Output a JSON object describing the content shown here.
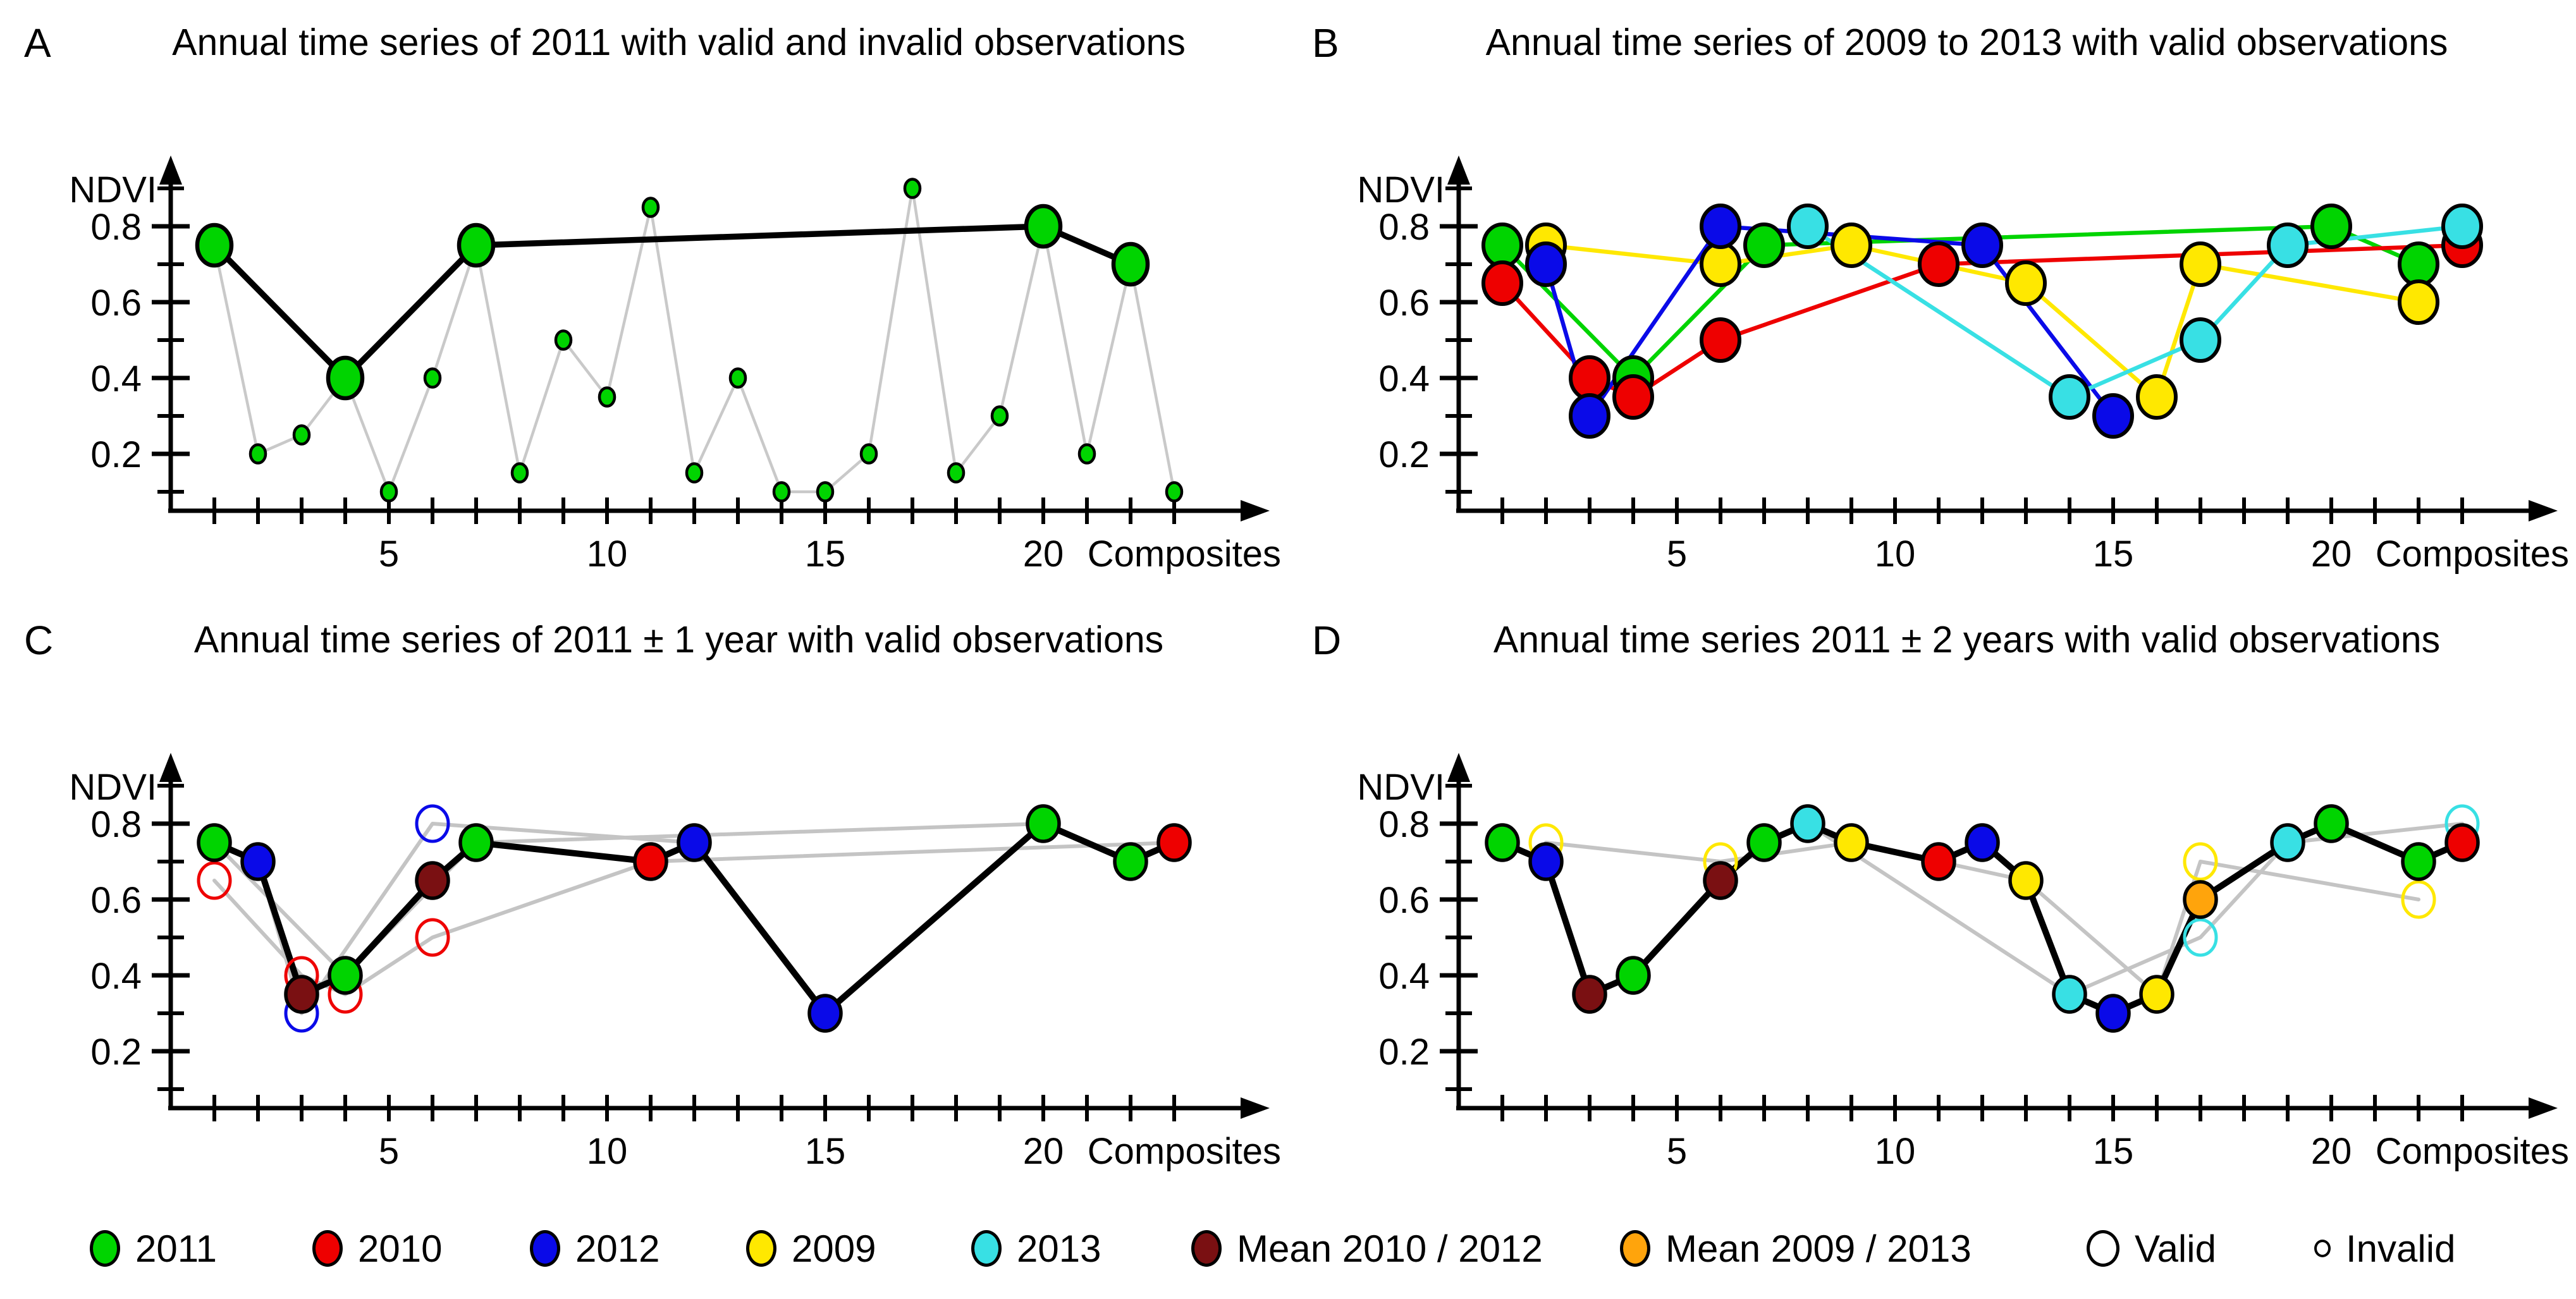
{
  "figure_title": "",
  "colors": {
    "y2011": "#00d400",
    "y2010": "#ee0000",
    "y2012": "#0a0ae8",
    "y2009": "#ffe800",
    "y2013": "#38e0e4",
    "mean_2010_2012": "#7a1012",
    "mean_2009_2013": "#ffa40c",
    "gray_line_a": "#c9c9c9",
    "gray_line_cd": "#c4c4c4",
    "black": "#000000"
  },
  "axis": {
    "ylabel": "NDVI",
    "xlabel": "Composites",
    "y_ticks_minor": [
      0.1,
      0.2,
      0.3,
      0.4,
      0.5,
      0.6,
      0.7,
      0.8,
      0.9
    ],
    "y_ticks_labeled": [
      0.2,
      0.4,
      0.6,
      0.8
    ],
    "x_tick_count": 23,
    "x_ticks_labeled": [
      5,
      10,
      15,
      20
    ],
    "xlim": [
      0,
      24.5
    ],
    "ylim": [
      0,
      0.95
    ],
    "grid": "off"
  },
  "chart_data": [
    {
      "type": "line",
      "panel_letter": "A",
      "title": "Annual time series of 2011 with valid and invalid observations",
      "xlabel": "Composites",
      "ylabel": "NDVI",
      "legend_position": "none",
      "point_style": "large filled = valid, small filled = invalid; black line connects valid, gray line connects all",
      "series_year": "2011",
      "points": [
        {
          "c": 1,
          "v": 0.75,
          "valid": true
        },
        {
          "c": 2,
          "v": 0.2,
          "valid": false
        },
        {
          "c": 3,
          "v": 0.25,
          "valid": false
        },
        {
          "c": 4,
          "v": 0.4,
          "valid": true
        },
        {
          "c": 5,
          "v": 0.1,
          "valid": false
        },
        {
          "c": 6,
          "v": 0.4,
          "valid": false
        },
        {
          "c": 7,
          "v": 0.75,
          "valid": true
        },
        {
          "c": 8,
          "v": 0.15,
          "valid": false
        },
        {
          "c": 9,
          "v": 0.5,
          "valid": false
        },
        {
          "c": 10,
          "v": 0.35,
          "valid": false
        },
        {
          "c": 11,
          "v": 0.85,
          "valid": false
        },
        {
          "c": 12,
          "v": 0.15,
          "valid": false
        },
        {
          "c": 13,
          "v": 0.4,
          "valid": false
        },
        {
          "c": 14,
          "v": 0.1,
          "valid": false
        },
        {
          "c": 15,
          "v": 0.1,
          "valid": false
        },
        {
          "c": 16,
          "v": 0.2,
          "valid": false
        },
        {
          "c": 17,
          "v": 0.9,
          "valid": false
        },
        {
          "c": 18,
          "v": 0.15,
          "valid": false
        },
        {
          "c": 19,
          "v": 0.3,
          "valid": false
        },
        {
          "c": 20,
          "v": 0.8,
          "valid": true
        },
        {
          "c": 21,
          "v": 0.2,
          "valid": false
        },
        {
          "c": 22,
          "v": 0.7,
          "valid": true
        },
        {
          "c": 23,
          "v": 0.1,
          "valid": false
        }
      ]
    },
    {
      "type": "line",
      "panel_letter": "B",
      "title": "Annual time series of 2009 to 2013 with valid observations",
      "xlabel": "Composites",
      "ylabel": "NDVI",
      "legend_position": "bottom-shared",
      "series": [
        {
          "name": "2011",
          "color_key": "y2011",
          "points": [
            [
              1,
              0.75
            ],
            [
              4,
              0.4
            ],
            [
              7,
              0.75
            ],
            [
              20,
              0.8
            ],
            [
              22,
              0.7
            ]
          ]
        },
        {
          "name": "2009",
          "color_key": "y2009",
          "points": [
            [
              2,
              0.75
            ],
            [
              6,
              0.7
            ],
            [
              9,
              0.75
            ],
            [
              13,
              0.65
            ],
            [
              16,
              0.35
            ],
            [
              17,
              0.7
            ],
            [
              22,
              0.6
            ]
          ]
        },
        {
          "name": "2010",
          "color_key": "y2010",
          "points": [
            [
              1,
              0.65
            ],
            [
              3,
              0.4
            ],
            [
              4,
              0.35
            ],
            [
              6,
              0.5
            ],
            [
              11,
              0.7
            ],
            [
              23,
              0.75
            ]
          ]
        },
        {
          "name": "2012",
          "color_key": "y2012",
          "points": [
            [
              2,
              0.7
            ],
            [
              3,
              0.3
            ],
            [
              6,
              0.8
            ],
            [
              12,
              0.75
            ],
            [
              15,
              0.3
            ]
          ]
        },
        {
          "name": "2013",
          "color_key": "y2013",
          "points": [
            [
              8,
              0.8
            ],
            [
              14,
              0.35
            ],
            [
              17,
              0.5
            ],
            [
              19,
              0.75
            ],
            [
              23,
              0.8
            ]
          ]
        }
      ]
    },
    {
      "type": "line",
      "panel_letter": "C",
      "title": "Annual time series of 2011 ± 1 year with valid observations",
      "xlabel": "Composites",
      "ylabel": "NDVI",
      "legend_position": "bottom-shared",
      "point_style": "filled = used in merged series (black line), open = valid observation not used; gray lines connect single-year series",
      "gray_series": [
        {
          "name": "2010",
          "points": [
            [
              1,
              0.65
            ],
            [
              3,
              0.4
            ],
            [
              4,
              0.35
            ],
            [
              6,
              0.5
            ],
            [
              11,
              0.7
            ],
            [
              23,
              0.75
            ]
          ]
        },
        {
          "name": "2012",
          "points": [
            [
              2,
              0.7
            ],
            [
              3,
              0.3
            ],
            [
              6,
              0.8
            ],
            [
              12,
              0.75
            ],
            [
              15,
              0.3
            ]
          ]
        },
        {
          "name": "2011",
          "points": [
            [
              1,
              0.75
            ],
            [
              4,
              0.4
            ],
            [
              7,
              0.75
            ],
            [
              20,
              0.8
            ],
            [
              22,
              0.7
            ]
          ]
        }
      ],
      "merged_points": [
        {
          "c": 1,
          "v": 0.75,
          "color_key": "y2011"
        },
        {
          "c": 2,
          "v": 0.7,
          "color_key": "y2012"
        },
        {
          "c": 3,
          "v": 0.35,
          "color_key": "mean_2010_2012"
        },
        {
          "c": 4,
          "v": 0.4,
          "color_key": "y2011"
        },
        {
          "c": 6,
          "v": 0.65,
          "color_key": "mean_2010_2012"
        },
        {
          "c": 7,
          "v": 0.75,
          "color_key": "y2011"
        },
        {
          "c": 11,
          "v": 0.7,
          "color_key": "y2010"
        },
        {
          "c": 12,
          "v": 0.75,
          "color_key": "y2012"
        },
        {
          "c": 15,
          "v": 0.3,
          "color_key": "y2012"
        },
        {
          "c": 20,
          "v": 0.8,
          "color_key": "y2011"
        },
        {
          "c": 22,
          "v": 0.7,
          "color_key": "y2011"
        },
        {
          "c": 23,
          "v": 0.75,
          "color_key": "y2010"
        }
      ],
      "open_points": [
        {
          "c": 1,
          "v": 0.65,
          "color_key": "y2010"
        },
        {
          "c": 3,
          "v": 0.4,
          "color_key": "y2010"
        },
        {
          "c": 3,
          "v": 0.3,
          "color_key": "y2012"
        },
        {
          "c": 4,
          "v": 0.35,
          "color_key": "y2010"
        },
        {
          "c": 6,
          "v": 0.8,
          "color_key": "y2012"
        },
        {
          "c": 6,
          "v": 0.5,
          "color_key": "y2010"
        }
      ]
    },
    {
      "type": "line",
      "panel_letter": "D",
      "title": "Annual time series 2011 ± 2 years with valid observations",
      "xlabel": "Composites",
      "ylabel": "NDVI",
      "legend_position": "bottom-shared",
      "point_style": "filled = used in merged series (black line), open = valid observation not used; gray lines connect 2009 and 2013 series",
      "gray_series": [
        {
          "name": "2009",
          "points": [
            [
              2,
              0.75
            ],
            [
              6,
              0.7
            ],
            [
              9,
              0.75
            ],
            [
              13,
              0.65
            ],
            [
              16,
              0.35
            ],
            [
              17,
              0.7
            ],
            [
              22,
              0.6
            ]
          ]
        },
        {
          "name": "2013",
          "points": [
            [
              8,
              0.8
            ],
            [
              14,
              0.35
            ],
            [
              17,
              0.5
            ],
            [
              19,
              0.75
            ],
            [
              23,
              0.8
            ]
          ]
        }
      ],
      "merged_points": [
        {
          "c": 1,
          "v": 0.75,
          "color_key": "y2011"
        },
        {
          "c": 2,
          "v": 0.7,
          "color_key": "y2012"
        },
        {
          "c": 3,
          "v": 0.35,
          "color_key": "mean_2010_2012"
        },
        {
          "c": 4,
          "v": 0.4,
          "color_key": "y2011"
        },
        {
          "c": 6,
          "v": 0.65,
          "color_key": "mean_2010_2012"
        },
        {
          "c": 7,
          "v": 0.75,
          "color_key": "y2011"
        },
        {
          "c": 8,
          "v": 0.8,
          "color_key": "y2013"
        },
        {
          "c": 9,
          "v": 0.75,
          "color_key": "y2009"
        },
        {
          "c": 11,
          "v": 0.7,
          "color_key": "y2010"
        },
        {
          "c": 12,
          "v": 0.75,
          "color_key": "y2012"
        },
        {
          "c": 13,
          "v": 0.65,
          "color_key": "y2009"
        },
        {
          "c": 14,
          "v": 0.35,
          "color_key": "y2013"
        },
        {
          "c": 15,
          "v": 0.3,
          "color_key": "y2012"
        },
        {
          "c": 16,
          "v": 0.35,
          "color_key": "y2009"
        },
        {
          "c": 17,
          "v": 0.6,
          "color_key": "mean_2009_2013"
        },
        {
          "c": 19,
          "v": 0.75,
          "color_key": "y2013"
        },
        {
          "c": 20,
          "v": 0.8,
          "color_key": "y2011"
        },
        {
          "c": 22,
          "v": 0.7,
          "color_key": "y2011"
        },
        {
          "c": 23,
          "v": 0.75,
          "color_key": "y2010"
        }
      ],
      "open_points": [
        {
          "c": 2,
          "v": 0.75,
          "color_key": "y2009"
        },
        {
          "c": 6,
          "v": 0.7,
          "color_key": "y2009"
        },
        {
          "c": 17,
          "v": 0.7,
          "color_key": "y2009"
        },
        {
          "c": 17,
          "v": 0.5,
          "color_key": "y2013"
        },
        {
          "c": 22,
          "v": 0.6,
          "color_key": "y2009"
        },
        {
          "c": 23,
          "v": 0.8,
          "color_key": "y2013"
        }
      ]
    }
  ],
  "legend": {
    "items": [
      {
        "label": "2011",
        "color_key": "y2011",
        "swatch": "filled"
      },
      {
        "label": "2010",
        "color_key": "y2010",
        "swatch": "filled"
      },
      {
        "label": "2012",
        "color_key": "y2012",
        "swatch": "filled"
      },
      {
        "label": "2009",
        "color_key": "y2009",
        "swatch": "filled"
      },
      {
        "label": "2013",
        "color_key": "y2013",
        "swatch": "filled"
      },
      {
        "label": "Mean 2010 / 2012",
        "color_key": "mean_2010_2012",
        "swatch": "filled"
      },
      {
        "label": "Mean 2009 / 2013",
        "color_key": "mean_2009_2013",
        "swatch": "filled"
      },
      {
        "label": "Valid",
        "color_key": null,
        "swatch": "open-large"
      },
      {
        "label": "Invalid",
        "color_key": null,
        "swatch": "open-small"
      }
    ]
  }
}
